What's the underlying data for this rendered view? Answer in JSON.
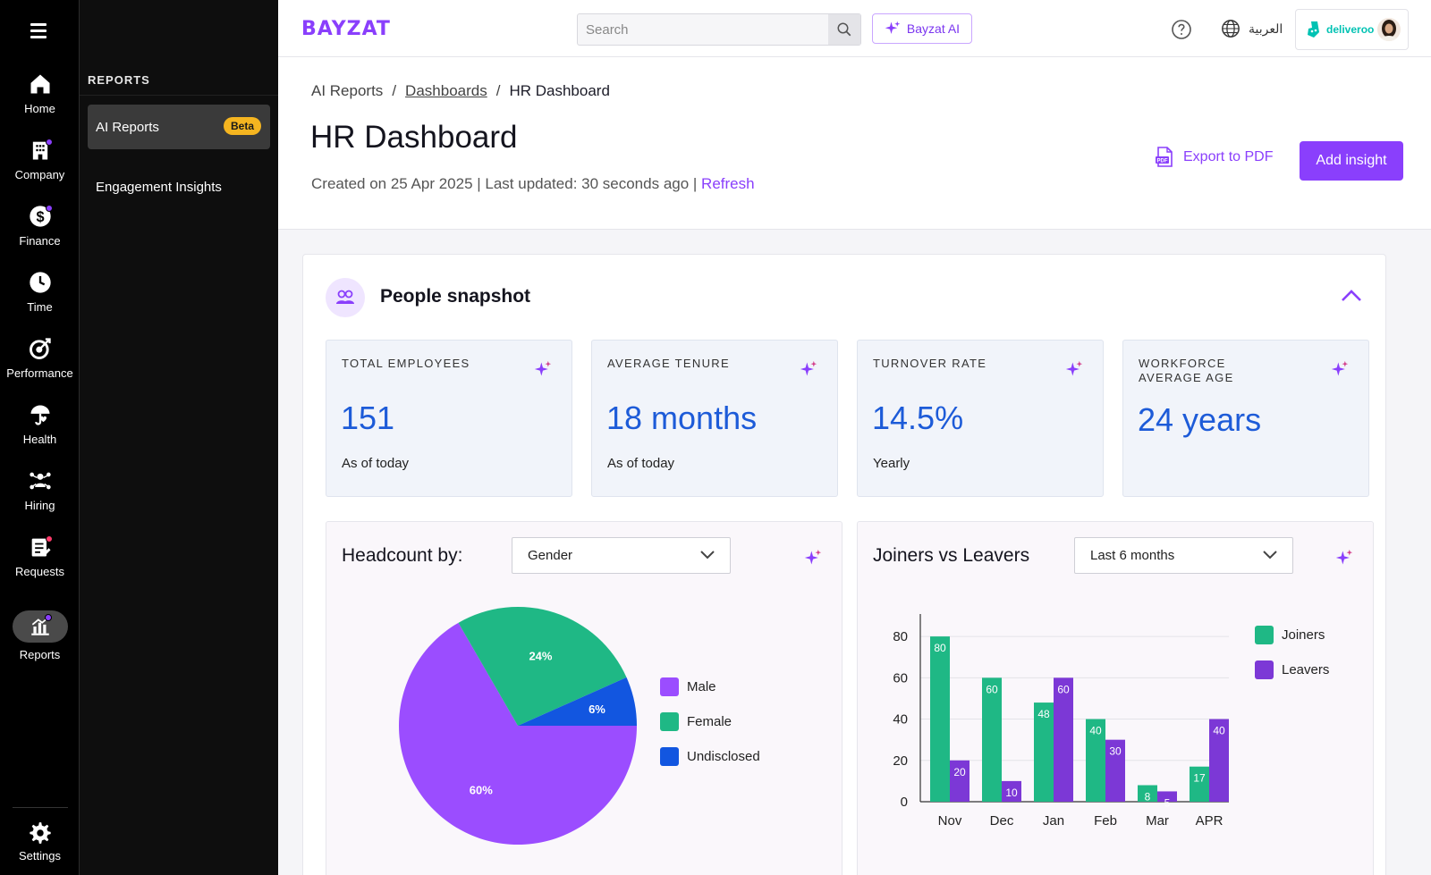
{
  "rail": {
    "items": [
      {
        "label": "Home",
        "icon": "home-icon"
      },
      {
        "label": "Company",
        "icon": "building-icon"
      },
      {
        "label": "Finance",
        "icon": "dollar-icon"
      },
      {
        "label": "Time",
        "icon": "clock-icon"
      },
      {
        "label": "Performance",
        "icon": "target-icon"
      },
      {
        "label": "Health",
        "icon": "umbrella-heart-icon"
      },
      {
        "label": "Hiring",
        "icon": "people-network-icon"
      },
      {
        "label": "Requests",
        "icon": "clipboard-icon"
      },
      {
        "label": "Reports",
        "icon": "chart-icon"
      }
    ],
    "settings_label": "Settings"
  },
  "subnav": {
    "section": "REPORTS",
    "items": [
      {
        "label": "AI Reports",
        "badge": "Beta"
      },
      {
        "label": "Engagement Insights"
      }
    ]
  },
  "topbar": {
    "logo": "BAYZAT",
    "search_placeholder": "Search",
    "ai_label": "Bayzat AI",
    "language": "العربية",
    "company": "deliveroo"
  },
  "header": {
    "breadcrumb": [
      "AI Reports",
      "Dashboards",
      "HR Dashboard"
    ],
    "title": "HR Dashboard",
    "meta": "Created on 25 Apr 2025 | Last updated: 30 seconds ago | ",
    "refresh": "Refresh",
    "export_label": "Export to PDF",
    "add_label": "Add insight"
  },
  "snapshot": {
    "title": "People snapshot",
    "kpis": [
      {
        "label": "TOTAL EMPLOYEES",
        "value": "151",
        "sub": "As of today"
      },
      {
        "label": "AVERAGE TENURE",
        "value": "18 months",
        "sub": "As of today"
      },
      {
        "label": "TURNOVER RATE",
        "value": "14.5%",
        "sub": "Yearly"
      },
      {
        "label": "WORKFORCE AVERAGE AGE",
        "value": "24 years",
        "sub": ""
      }
    ]
  },
  "colors": {
    "accent": "#8a3ffc",
    "male": "#9b4dff",
    "female": "#1fb885",
    "undisclosed": "#1256e0",
    "joiners": "#1fb885",
    "leavers": "#7c38d6"
  },
  "chart_data": [
    {
      "type": "pie",
      "title": "Headcount by:",
      "filter": "Gender",
      "labels": [
        "Male",
        "Female",
        "Undisclosed"
      ],
      "values": [
        60,
        24,
        6
      ],
      "value_labels": [
        "60%",
        "24%",
        "6%"
      ],
      "legend": "right"
    },
    {
      "type": "bar",
      "title": "Joiners vs Leavers",
      "filter": "Last 6 months",
      "categories": [
        "Nov",
        "Dec",
        "Jan",
        "Feb",
        "Mar",
        "APR"
      ],
      "series": [
        {
          "name": "Joiners",
          "values": [
            80,
            60,
            48,
            40,
            8,
            17
          ]
        },
        {
          "name": "Leavers",
          "values": [
            20,
            10,
            60,
            30,
            5,
            40
          ]
        }
      ],
      "yticks": [
        "0",
        "20",
        "40",
        "60",
        "80"
      ],
      "ylim": [
        0,
        90
      ],
      "legend": "top-right"
    }
  ]
}
